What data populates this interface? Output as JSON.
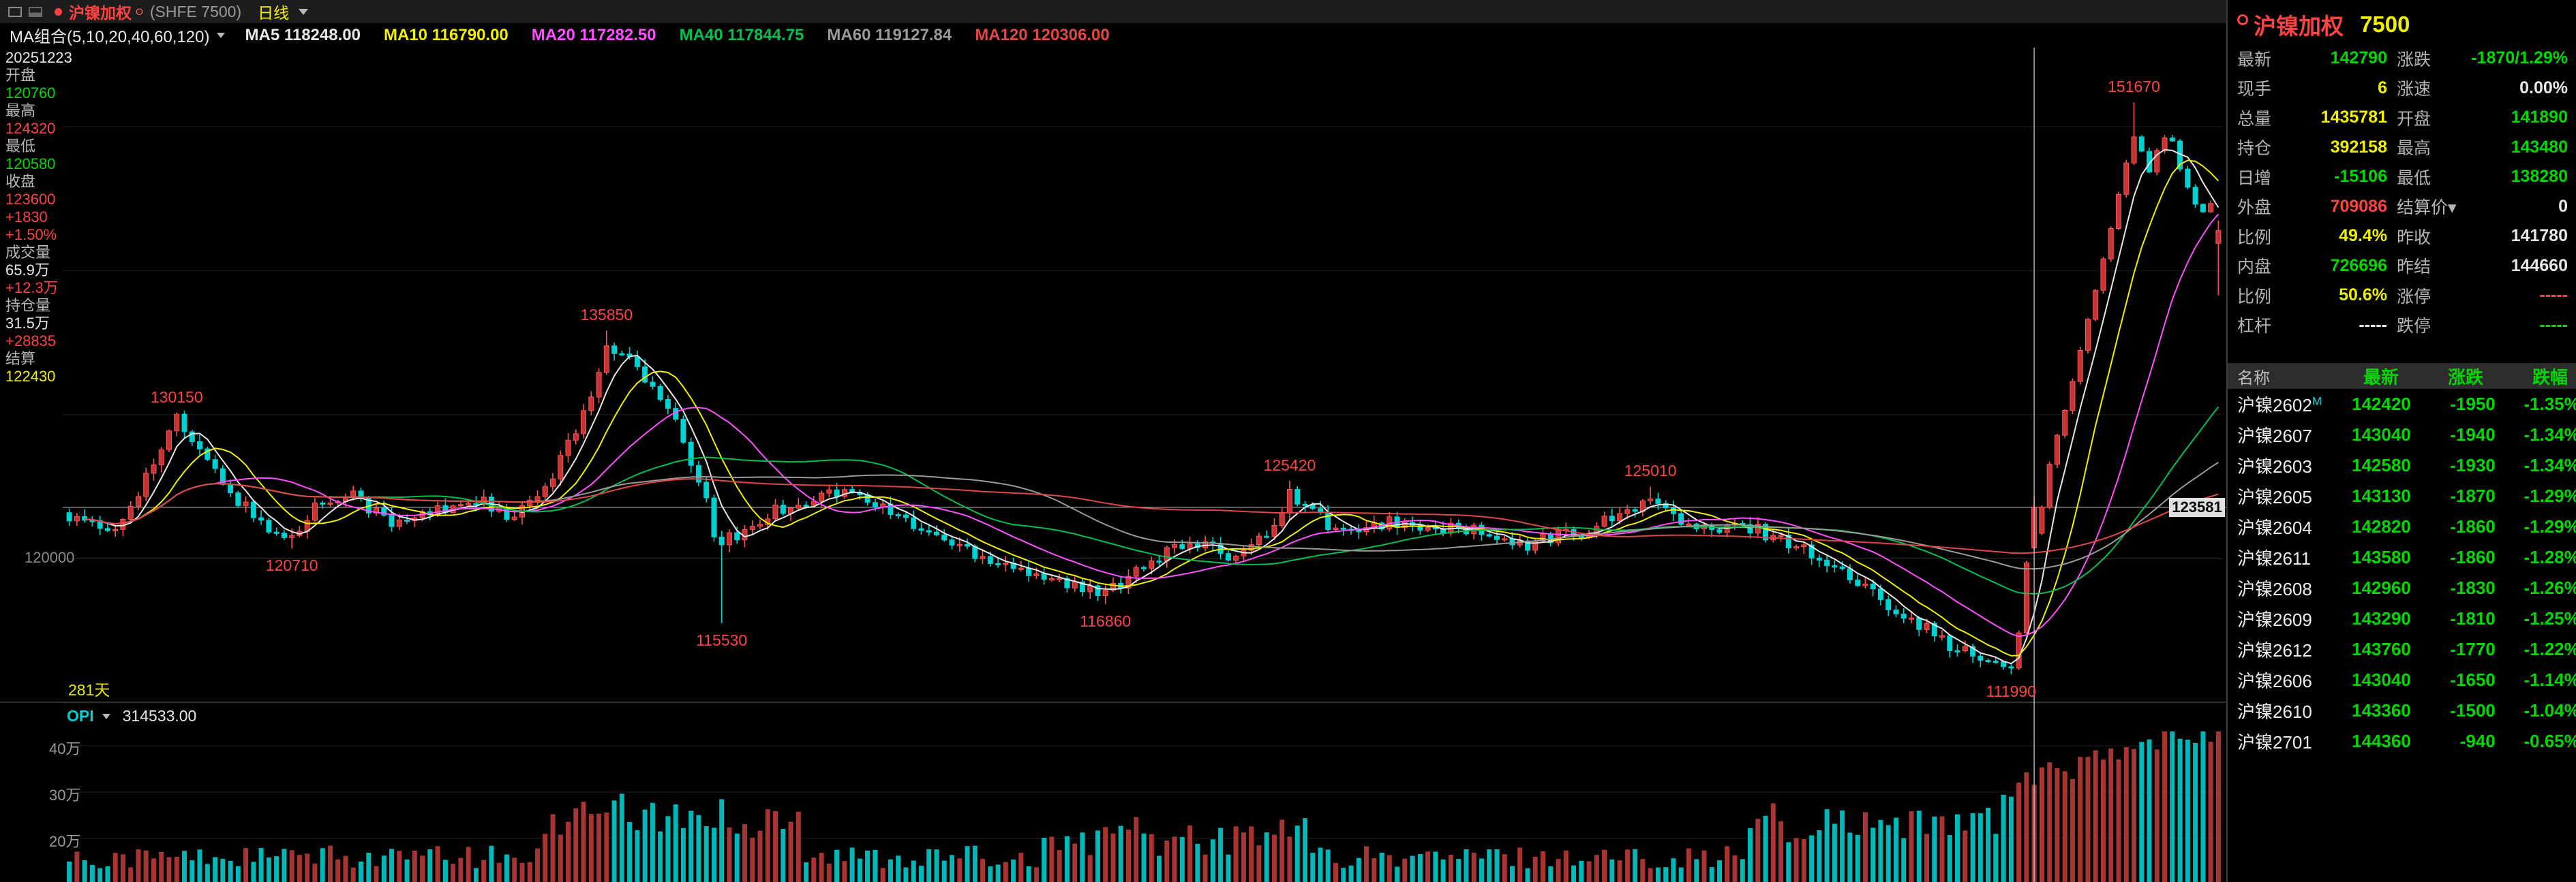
{
  "colors": {
    "red": "#ff4242",
    "green": "#00d800",
    "yellow": "#f0f000",
    "white": "#e8e8e8",
    "cyan": "#00e0e0",
    "label": "#b5b5b5",
    "gray": "#9a9a9a"
  },
  "title_bar": {
    "instrument": "沪镍加权",
    "superscript": "O",
    "exchange": "(SHFE 7500)",
    "period": "日线"
  },
  "ma_bar": {
    "group_label": "MA组合(5,10,20,40,60,120)",
    "items": [
      {
        "label": "MA5",
        "value": "118248.00",
        "color": "#e8e8e8"
      },
      {
        "label": "MA10",
        "value": "116790.00",
        "color": "#f0f000"
      },
      {
        "label": "MA20",
        "value": "117282.50",
        "color": "#ff4fff"
      },
      {
        "label": "MA40",
        "value": "117844.75",
        "color": "#00c050"
      },
      {
        "label": "MA60",
        "value": "119127.84",
        "color": "#9a9a9a"
      },
      {
        "label": "MA120",
        "value": "120306.00",
        "color": "#e04848"
      }
    ]
  },
  "left_panel": {
    "lines": [
      {
        "t": "20251223",
        "c": "white"
      },
      {
        "t": "开盘",
        "c": "label"
      },
      {
        "t": "120760",
        "c": "green"
      },
      {
        "t": "最高",
        "c": "label"
      },
      {
        "t": "124320",
        "c": "red"
      },
      {
        "t": "最低",
        "c": "label"
      },
      {
        "t": "120580",
        "c": "green"
      },
      {
        "t": "收盘",
        "c": "label"
      },
      {
        "t": "123600",
        "c": "red"
      },
      {
        "t": "+1830",
        "c": "red"
      },
      {
        "t": "+1.50%",
        "c": "red"
      },
      {
        "t": "成交量",
        "c": "label"
      },
      {
        "t": "65.9万",
        "c": "white"
      },
      {
        "t": "+12.3万",
        "c": "red"
      },
      {
        "t": "持仓量",
        "c": "label"
      },
      {
        "t": "31.5万",
        "c": "white"
      },
      {
        "t": "+28835",
        "c": "red"
      },
      {
        "t": "结算",
        "c": "label"
      },
      {
        "t": "122430",
        "c": "yellow"
      }
    ]
  },
  "chart_data": {
    "type": "candlestick",
    "bar_count": 281,
    "period_label": "281天",
    "y_axis": {
      "min": 110000,
      "max": 155000,
      "gridline_step": 10000,
      "visible_label": "120000"
    },
    "price_line": {
      "value": 123581,
      "label": "123581"
    },
    "swing_labels": [
      {
        "price": 130150,
        "frac": 0.05,
        "pos": "above"
      },
      {
        "price": 120710,
        "frac": 0.103,
        "pos": "below"
      },
      {
        "price": 135850,
        "frac": 0.251,
        "pos": "above"
      },
      {
        "price": 115530,
        "frac": 0.302,
        "pos": "below"
      },
      {
        "price": 116860,
        "frac": 0.481,
        "pos": "below"
      },
      {
        "price": 125420,
        "frac": 0.569,
        "pos": "above"
      },
      {
        "price": 125010,
        "frac": 0.734,
        "pos": "above"
      },
      {
        "price": 111990,
        "frac": 0.904,
        "pos": "below"
      },
      {
        "price": 151670,
        "frac": 0.962,
        "pos": "above"
      }
    ],
    "keypoints": [
      [
        0,
        122800
      ],
      [
        0.02,
        121800
      ],
      [
        0.035,
        125500
      ],
      [
        0.05,
        129600
      ],
      [
        0.065,
        126500
      ],
      [
        0.085,
        123000
      ],
      [
        0.103,
        121200
      ],
      [
        0.115,
        123800
      ],
      [
        0.13,
        124800
      ],
      [
        0.15,
        122300
      ],
      [
        0.17,
        123300
      ],
      [
        0.19,
        124200
      ],
      [
        0.205,
        122600
      ],
      [
        0.22,
        124500
      ],
      [
        0.235,
        128500
      ],
      [
        0.251,
        135000
      ],
      [
        0.262,
        133500
      ],
      [
        0.275,
        131000
      ],
      [
        0.285,
        128500
      ],
      [
        0.295,
        124500
      ],
      [
        0.302,
        121000
      ],
      [
        0.31,
        121500
      ],
      [
        0.33,
        123500
      ],
      [
        0.36,
        124800
      ],
      [
        0.385,
        123000
      ],
      [
        0.4,
        121800
      ],
      [
        0.42,
        120500
      ],
      [
        0.44,
        119500
      ],
      [
        0.46,
        118500
      ],
      [
        0.481,
        117400
      ],
      [
        0.5,
        119800
      ],
      [
        0.52,
        121000
      ],
      [
        0.54,
        120300
      ],
      [
        0.555,
        121500
      ],
      [
        0.569,
        124600
      ],
      [
        0.585,
        122500
      ],
      [
        0.6,
        121500
      ],
      [
        0.615,
        122800
      ],
      [
        0.63,
        121800
      ],
      [
        0.645,
        122300
      ],
      [
        0.66,
        121500
      ],
      [
        0.675,
        120800
      ],
      [
        0.69,
        121500
      ],
      [
        0.705,
        122000
      ],
      [
        0.72,
        122800
      ],
      [
        0.734,
        124300
      ],
      [
        0.75,
        122500
      ],
      [
        0.765,
        121800
      ],
      [
        0.78,
        122300
      ],
      [
        0.795,
        121500
      ],
      [
        0.81,
        120500
      ],
      [
        0.825,
        119000
      ],
      [
        0.84,
        117500
      ],
      [
        0.855,
        116200
      ],
      [
        0.87,
        114500
      ],
      [
        0.885,
        113200
      ],
      [
        0.896,
        112800
      ],
      [
        0.904,
        112300
      ],
      [
        0.908,
        115500
      ],
      [
        0.912,
        121770
      ],
      [
        0.916,
        123600
      ],
      [
        0.922,
        127000
      ],
      [
        0.93,
        131000
      ],
      [
        0.94,
        137000
      ],
      [
        0.95,
        143000
      ],
      [
        0.958,
        148000
      ],
      [
        0.962,
        150000
      ],
      [
        0.967,
        146500
      ],
      [
        0.972,
        148500
      ],
      [
        0.977,
        149800
      ],
      [
        0.982,
        147000
      ],
      [
        0.989,
        144660
      ],
      [
        0.996,
        143800
      ],
      [
        1,
        142790
      ]
    ],
    "forced_closes": {
      "256": 121770,
      "257": 123600,
      "279": 144660,
      "280": 142790
    },
    "crosshair": {
      "frac": 0.916,
      "date": "20251223",
      "ohlc": [
        120760,
        124320,
        120580,
        123600
      ]
    },
    "last_candle": {
      "open": 141890,
      "high": 143480,
      "low": 138280,
      "close": 142790
    },
    "ma_periods": [
      5,
      10,
      20,
      40,
      60,
      120
    ],
    "volume_pane": {
      "opi_label": "OPI",
      "opi_value": "314533.00",
      "axis_labels": [
        "40万",
        "30万",
        "20万"
      ]
    }
  },
  "quote_panel": {
    "name": "沪镍加权",
    "code": "7500",
    "rows": [
      {
        "l1": "最新",
        "v1": "142790",
        "c1": "green",
        "l2": "涨跌",
        "v2": "-1870/1.29%",
        "c2": "green"
      },
      {
        "l1": "现手",
        "v1": "6",
        "c1": "yellow",
        "l2": "涨速",
        "v2": "0.00%",
        "c2": "white"
      },
      {
        "l1": "总量",
        "v1": "1435781",
        "c1": "yellow",
        "l2": "开盘",
        "v2": "141890",
        "c2": "green"
      },
      {
        "l1": "持仓",
        "v1": "392158",
        "c1": "yellow",
        "l2": "最高",
        "v2": "143480",
        "c2": "green"
      },
      {
        "l1": "日增",
        "v1": "-15106",
        "c1": "green",
        "l2": "最低",
        "v2": "138280",
        "c2": "green"
      },
      {
        "l1": "外盘",
        "v1": "709086",
        "c1": "red",
        "l2": "结算价▾",
        "v2": "0",
        "c2": "white"
      },
      {
        "l1": "比例",
        "v1": "49.4%",
        "c1": "yellow",
        "l2": "昨收",
        "v2": "141780",
        "c2": "white"
      },
      {
        "l1": "内盘",
        "v1": "726696",
        "c1": "green",
        "l2": "昨结",
        "v2": "144660",
        "c2": "white"
      },
      {
        "l1": "比例",
        "v1": "50.6%",
        "c1": "yellow",
        "l2": "涨停",
        "v2": "-----",
        "c2": "red"
      },
      {
        "l1": "杠杆",
        "v1": "-----",
        "c1": "white",
        "l2": "跌停",
        "v2": "-----",
        "c2": "green"
      }
    ]
  },
  "contracts": {
    "headers": [
      "名称",
      "最新",
      "涨跌",
      "跌幅"
    ],
    "rows": [
      {
        "name": "沪镍2602",
        "tag": "M",
        "last": "142420",
        "change": "-1950",
        "pct": "-1.35%"
      },
      {
        "name": "沪镍2607",
        "tag": "",
        "last": "143040",
        "change": "-1940",
        "pct": "-1.34%"
      },
      {
        "name": "沪镍2603",
        "tag": "",
        "last": "142580",
        "change": "-1930",
        "pct": "-1.34%"
      },
      {
        "name": "沪镍2605",
        "tag": "",
        "last": "143130",
        "change": "-1870",
        "pct": "-1.29%"
      },
      {
        "name": "沪镍2604",
        "tag": "",
        "last": "142820",
        "change": "-1860",
        "pct": "-1.29%"
      },
      {
        "name": "沪镍2611",
        "tag": "",
        "last": "143580",
        "change": "-1860",
        "pct": "-1.28%"
      },
      {
        "name": "沪镍2608",
        "tag": "",
        "last": "142960",
        "change": "-1830",
        "pct": "-1.26%"
      },
      {
        "name": "沪镍2609",
        "tag": "",
        "last": "143290",
        "change": "-1810",
        "pct": "-1.25%"
      },
      {
        "name": "沪镍2612",
        "tag": "",
        "last": "143760",
        "change": "-1770",
        "pct": "-1.22%"
      },
      {
        "name": "沪镍2606",
        "tag": "",
        "last": "143040",
        "change": "-1650",
        "pct": "-1.14%"
      },
      {
        "name": "沪镍2610",
        "tag": "",
        "last": "143360",
        "change": "-1500",
        "pct": "-1.04%"
      },
      {
        "name": "沪镍2701",
        "tag": "",
        "last": "144360",
        "change": "-940",
        "pct": "-0.65%"
      }
    ]
  }
}
